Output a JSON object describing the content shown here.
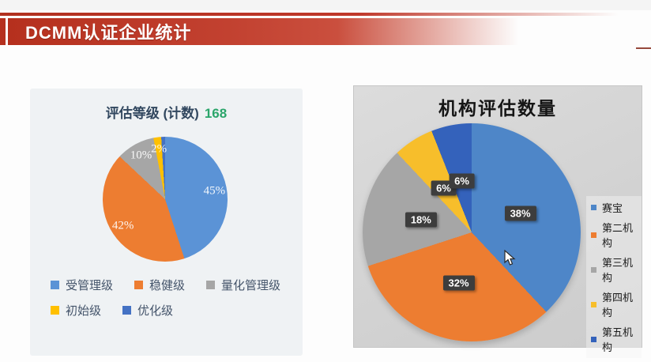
{
  "header": {
    "title": "DCMM认证企业统计"
  },
  "left_chart": {
    "title": "评估等级 (计数)",
    "count": "168"
  },
  "right_chart": {
    "title": "机构评估数量"
  },
  "chart_data": [
    {
      "type": "pie",
      "title": "评估等级 (计数)",
      "total_count": "168",
      "unit": "percent",
      "legend_position": "bottom",
      "label_style": "plain",
      "slices": [
        {
          "label": "受管理级",
          "value": 45,
          "display": "45%",
          "color": "#5B93D6"
        },
        {
          "label": "稳健级",
          "value": 42,
          "display": "42%",
          "color": "#ED7D31"
        },
        {
          "label": "量化管理级",
          "value": 10,
          "display": "10%",
          "color": "#A6A6A6"
        },
        {
          "label": "初始级",
          "value": 2,
          "display": "2%",
          "color": "#FFC000"
        },
        {
          "label": "优化级",
          "value": 1,
          "display": "",
          "color": "#4472C4"
        }
      ]
    },
    {
      "type": "pie",
      "title": "机构评估数量",
      "unit": "percent",
      "legend_position": "right",
      "label_style": "boxed",
      "slices": [
        {
          "label": "赛宝",
          "value": 38,
          "display": "38%",
          "color": "#4E86C8"
        },
        {
          "label": "第二机构",
          "value": 32,
          "display": "32%",
          "color": "#ED7D31"
        },
        {
          "label": "第三机构",
          "value": 18,
          "display": "18%",
          "color": "#A6A6A6"
        },
        {
          "label": "第四机构",
          "value": 6,
          "display": "6%",
          "color": "#F7BE2B"
        },
        {
          "label": "第五机构",
          "value": 6,
          "display": "6%",
          "color": "#3462BB"
        }
      ]
    }
  ]
}
